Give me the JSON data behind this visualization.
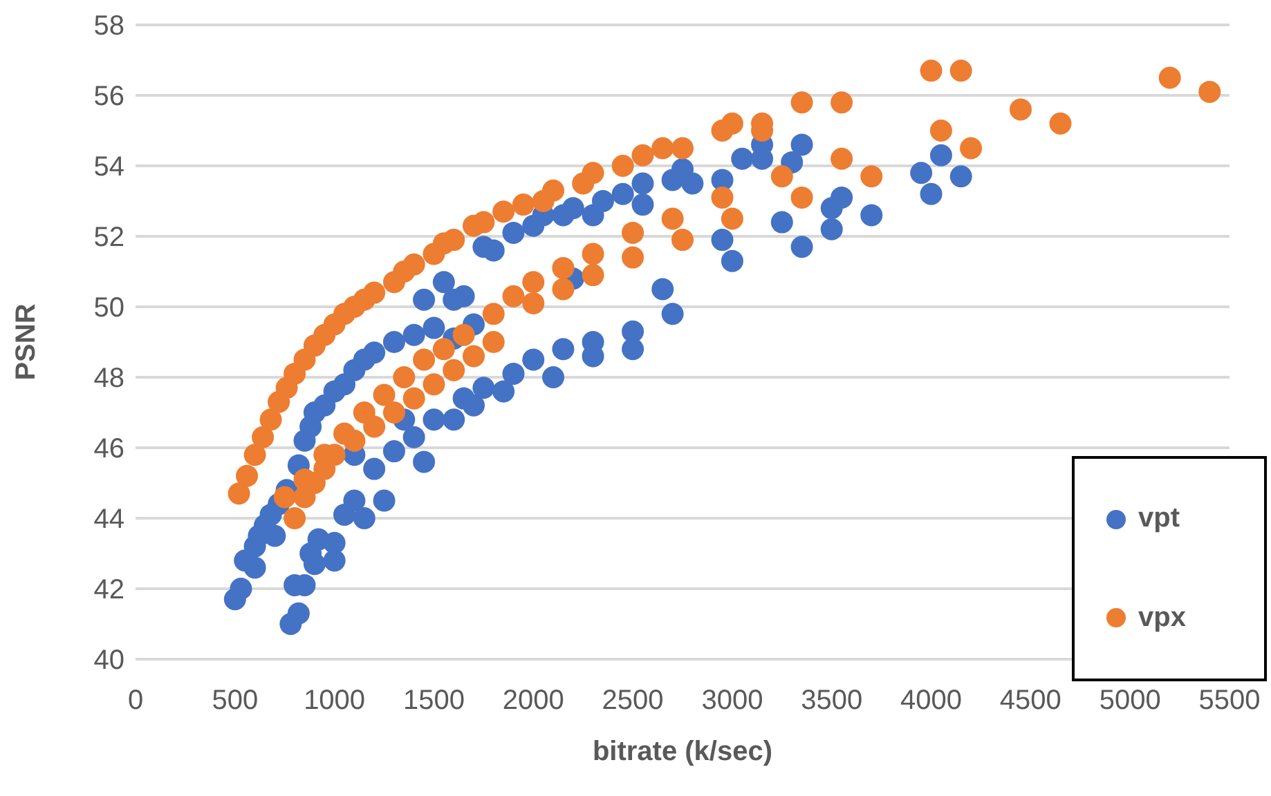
{
  "chart_data": {
    "type": "scatter",
    "xlabel": "bitrate (k/sec)",
    "ylabel": "PSNR",
    "xlim": [
      0,
      5500
    ],
    "xticks": [
      0,
      500,
      1000,
      1500,
      2000,
      2500,
      3000,
      3500,
      4000,
      4500,
      5000,
      5500
    ],
    "ylim": [
      40,
      58
    ],
    "yticks": [
      40,
      42,
      44,
      46,
      48,
      50,
      52,
      54,
      56,
      58
    ],
    "grid": "y",
    "legend": "bottom right",
    "marker": "circle",
    "series": [
      {
        "name": "vpt",
        "color": "#4472c4",
        "x": [
          500,
          530,
          550,
          600,
          600,
          620,
          650,
          680,
          700,
          720,
          760,
          820,
          850,
          880,
          900,
          950,
          1000,
          1050,
          1100,
          1150,
          1200,
          1300,
          1400,
          1500,
          1600,
          1700,
          780,
          820,
          800,
          850,
          880,
          900,
          920,
          1000,
          1000,
          1050,
          1100,
          1150,
          1250,
          1200,
          1100,
          1300,
          1400,
          1350,
          1450,
          1500,
          1600,
          1700,
          1650,
          1750,
          1850,
          1900,
          2000,
          2100,
          2150,
          2300,
          2300,
          2500,
          2500,
          2700,
          2650,
          1550,
          1600,
          1650,
          1450,
          1750,
          1800,
          1900,
          2000,
          2050,
          2150,
          2200,
          2300,
          2350,
          2450,
          2550,
          2550,
          2700,
          2750,
          2800,
          2950,
          3050,
          3150,
          3150,
          3300,
          3350,
          2950,
          3000,
          3250,
          3350,
          3500,
          3550,
          3500,
          3700,
          3950,
          4000,
          4050,
          4150,
          2200
        ],
        "values": [
          41.7,
          42.0,
          42.8,
          42.6,
          43.2,
          43.5,
          43.8,
          44.1,
          43.5,
          44.4,
          44.8,
          45.5,
          46.2,
          46.6,
          47.0,
          47.2,
          47.6,
          47.8,
          48.2,
          48.5,
          48.7,
          49.0,
          49.2,
          49.4,
          49.1,
          49.5,
          41.0,
          41.3,
          42.1,
          42.1,
          43.0,
          42.7,
          43.4,
          43.3,
          42.8,
          44.1,
          44.5,
          44.0,
          44.5,
          45.4,
          45.8,
          45.9,
          46.3,
          46.8,
          45.6,
          46.8,
          46.8,
          47.2,
          47.4,
          47.7,
          47.6,
          48.1,
          48.5,
          48.0,
          48.8,
          49.0,
          48.6,
          49.3,
          48.8,
          49.8,
          50.5,
          50.7,
          50.2,
          50.3,
          50.2,
          51.7,
          51.6,
          52.1,
          52.3,
          52.6,
          52.6,
          52.8,
          52.6,
          53.0,
          53.2,
          53.5,
          52.9,
          53.6,
          53.9,
          53.5,
          53.6,
          54.2,
          54.2,
          54.6,
          54.1,
          54.6,
          51.9,
          51.3,
          52.4,
          51.7,
          52.8,
          53.1,
          52.2,
          52.6,
          53.8,
          53.2,
          54.3,
          53.7,
          50.8
        ]
      },
      {
        "name": "vpx",
        "color": "#ed7d31",
        "x": [
          520,
          560,
          600,
          640,
          680,
          720,
          760,
          800,
          850,
          900,
          950,
          1000,
          1050,
          1100,
          1150,
          1200,
          1300,
          1350,
          1400,
          1500,
          1550,
          1600,
          1700,
          1750,
          1850,
          1950,
          2050,
          2100,
          2250,
          2300,
          2450,
          2550,
          2650,
          2750,
          3000,
          3150,
          3350,
          3550,
          4000,
          4150,
          5200,
          5400,
          800,
          850,
          900,
          950,
          1000,
          1100,
          1200,
          1300,
          1400,
          1500,
          1600,
          1700,
          1800,
          750,
          850,
          950,
          1050,
          1150,
          1250,
          1350,
          1450,
          1550,
          1650,
          1800,
          1900,
          2000,
          2000,
          2150,
          2150,
          2300,
          2300,
          2500,
          2500,
          2700,
          2750,
          2950,
          3000,
          3250,
          3350,
          3550,
          3700,
          4050,
          4200,
          4450,
          4650,
          3150,
          2950
        ],
        "values": [
          44.7,
          45.2,
          45.8,
          46.3,
          46.8,
          47.3,
          47.7,
          48.1,
          48.5,
          48.9,
          49.2,
          49.5,
          49.8,
          50.0,
          50.2,
          50.4,
          50.7,
          51.0,
          51.2,
          51.5,
          51.8,
          51.9,
          52.3,
          52.4,
          52.7,
          52.9,
          53.0,
          53.3,
          53.5,
          53.8,
          54.0,
          54.3,
          54.5,
          54.5,
          55.2,
          55.2,
          55.8,
          55.8,
          56.7,
          56.7,
          56.5,
          56.1,
          44.0,
          44.6,
          45.0,
          45.4,
          45.8,
          46.2,
          46.6,
          47.0,
          47.4,
          47.8,
          48.2,
          48.6,
          49.0,
          44.6,
          45.1,
          45.8,
          46.4,
          47.0,
          47.5,
          48.0,
          48.5,
          48.8,
          49.2,
          49.8,
          50.3,
          50.7,
          50.1,
          51.1,
          50.5,
          51.5,
          50.9,
          52.1,
          51.4,
          52.5,
          51.9,
          53.1,
          52.5,
          53.7,
          53.1,
          54.2,
          53.7,
          55.0,
          54.5,
          55.6,
          55.2,
          55.0,
          55.0
        ]
      }
    ]
  }
}
